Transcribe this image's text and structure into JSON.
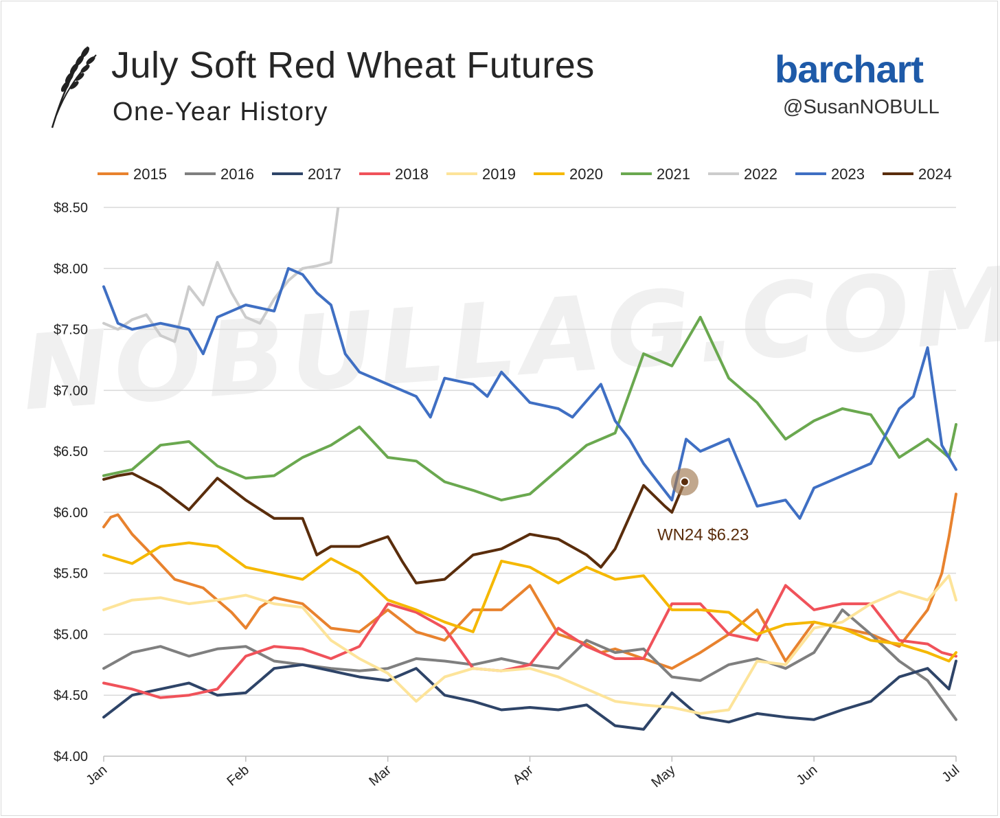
{
  "header": {
    "title": "July Soft Red Wheat Futures",
    "subtitle": "One-Year History",
    "brand": "barchart",
    "handle": "@SusanNOBULL",
    "watermark": "NOBULLAG.COM"
  },
  "chart_data": {
    "type": "line",
    "x_labels": [
      "Jan",
      "Feb",
      "Mar",
      "Apr",
      "May",
      "Jun",
      "Jul"
    ],
    "xlim": [
      0,
      6
    ],
    "ylim": [
      4.0,
      8.5
    ],
    "y_ticks": [
      {
        "value": 4.0,
        "label": "$4.00"
      },
      {
        "value": 4.5,
        "label": "$4.50"
      },
      {
        "value": 5.0,
        "label": "$5.00"
      },
      {
        "value": 5.5,
        "label": "$5.50"
      },
      {
        "value": 6.0,
        "label": "$6.00"
      },
      {
        "value": 6.5,
        "label": "$6.50"
      },
      {
        "value": 7.0,
        "label": "$7.00"
      },
      {
        "value": 7.5,
        "label": "$7.50"
      },
      {
        "value": 8.0,
        "label": "$8.00"
      },
      {
        "value": 8.5,
        "label": "$8.50"
      }
    ],
    "grid": "horizontal",
    "legend_position": "top",
    "annotation": {
      "series": "2024",
      "label": "WN24 $6.23",
      "x": 4.09,
      "y": 6.25
    },
    "series": [
      {
        "name": "2015",
        "color": "#e8822e",
        "x": [
          0,
          0.05,
          0.1,
          0.2,
          0.3,
          0.5,
          0.7,
          0.9,
          1.0,
          1.1,
          1.2,
          1.4,
          1.6,
          1.8,
          2.0,
          2.2,
          2.4,
          2.6,
          2.8,
          3.0,
          3.2,
          3.4,
          3.5,
          3.6,
          3.8,
          4.0,
          4.2,
          4.4,
          4.6,
          4.8,
          5.0,
          5.2,
          5.4,
          5.6,
          5.8,
          5.9,
          5.95,
          6.0
        ],
        "y": [
          5.88,
          5.96,
          5.98,
          5.82,
          5.7,
          5.45,
          5.38,
          5.18,
          5.05,
          5.22,
          5.3,
          5.25,
          5.05,
          5.02,
          5.2,
          5.02,
          4.95,
          5.2,
          5.2,
          5.4,
          5.0,
          4.92,
          4.85,
          4.88,
          4.8,
          4.72,
          4.85,
          5.0,
          5.2,
          4.78,
          5.1,
          5.05,
          5.0,
          4.9,
          5.2,
          5.5,
          5.8,
          6.15
        ]
      },
      {
        "name": "2016",
        "color": "#7f7f7f",
        "x": [
          0,
          0.2,
          0.4,
          0.6,
          0.8,
          1.0,
          1.2,
          1.4,
          1.6,
          1.8,
          2.0,
          2.2,
          2.4,
          2.6,
          2.8,
          3.0,
          3.2,
          3.4,
          3.6,
          3.8,
          4.0,
          4.2,
          4.4,
          4.6,
          4.8,
          5.0,
          5.2,
          5.4,
          5.6,
          5.8,
          6.0
        ],
        "y": [
          4.72,
          4.85,
          4.9,
          4.82,
          4.88,
          4.9,
          4.78,
          4.75,
          4.72,
          4.7,
          4.72,
          4.8,
          4.78,
          4.75,
          4.8,
          4.75,
          4.72,
          4.95,
          4.85,
          4.88,
          4.65,
          4.62,
          4.75,
          4.8,
          4.72,
          4.85,
          5.2,
          5.0,
          4.78,
          4.62,
          4.3
        ]
      },
      {
        "name": "2017",
        "color": "#2e4468",
        "x": [
          0,
          0.2,
          0.4,
          0.6,
          0.8,
          1.0,
          1.2,
          1.4,
          1.6,
          1.8,
          2.0,
          2.2,
          2.4,
          2.6,
          2.8,
          3.0,
          3.2,
          3.4,
          3.6,
          3.8,
          4.0,
          4.2,
          4.4,
          4.6,
          4.8,
          5.0,
          5.2,
          5.4,
          5.6,
          5.8,
          5.95,
          6.0
        ],
        "y": [
          4.32,
          4.5,
          4.55,
          4.6,
          4.5,
          4.52,
          4.72,
          4.75,
          4.7,
          4.65,
          4.62,
          4.72,
          4.5,
          4.45,
          4.38,
          4.4,
          4.38,
          4.42,
          4.25,
          4.22,
          4.52,
          4.32,
          4.28,
          4.35,
          4.32,
          4.3,
          4.38,
          4.45,
          4.65,
          4.72,
          4.55,
          4.78
        ]
      },
      {
        "name": "2018",
        "color": "#f0525a",
        "x": [
          0,
          0.2,
          0.4,
          0.6,
          0.8,
          1.0,
          1.2,
          1.4,
          1.6,
          1.8,
          2.0,
          2.2,
          2.4,
          2.6,
          2.8,
          3.0,
          3.2,
          3.4,
          3.6,
          3.8,
          4.0,
          4.2,
          4.4,
          4.6,
          4.8,
          5.0,
          5.2,
          5.4,
          5.6,
          5.8,
          5.9,
          6.0
        ],
        "y": [
          4.6,
          4.55,
          4.48,
          4.5,
          4.55,
          4.82,
          4.9,
          4.88,
          4.8,
          4.9,
          5.25,
          5.18,
          5.05,
          4.72,
          4.7,
          4.75,
          5.05,
          4.9,
          4.8,
          4.8,
          5.25,
          5.25,
          5.0,
          4.95,
          5.4,
          5.2,
          5.25,
          5.25,
          4.95,
          4.92,
          4.85,
          4.82
        ]
      },
      {
        "name": "2019",
        "color": "#fde49a",
        "x": [
          0,
          0.2,
          0.4,
          0.6,
          0.8,
          1.0,
          1.2,
          1.4,
          1.6,
          1.8,
          2.0,
          2.2,
          2.4,
          2.6,
          2.8,
          3.0,
          3.2,
          3.4,
          3.6,
          3.8,
          4.0,
          4.2,
          4.4,
          4.6,
          4.8,
          5.0,
          5.2,
          5.4,
          5.6,
          5.8,
          5.95,
          6.0
        ],
        "y": [
          5.2,
          5.28,
          5.3,
          5.25,
          5.28,
          5.32,
          5.25,
          5.22,
          4.95,
          4.8,
          4.68,
          4.45,
          4.65,
          4.72,
          4.7,
          4.72,
          4.65,
          4.55,
          4.45,
          4.42,
          4.4,
          4.35,
          4.38,
          4.78,
          4.75,
          5.05,
          5.1,
          5.25,
          5.35,
          5.28,
          5.48,
          5.28
        ]
      },
      {
        "name": "2020",
        "color": "#f5b800",
        "x": [
          0,
          0.2,
          0.4,
          0.6,
          0.8,
          1.0,
          1.2,
          1.4,
          1.6,
          1.8,
          2.0,
          2.2,
          2.4,
          2.6,
          2.8,
          3.0,
          3.2,
          3.4,
          3.6,
          3.8,
          4.0,
          4.2,
          4.4,
          4.6,
          4.8,
          5.0,
          5.2,
          5.4,
          5.6,
          5.8,
          5.95,
          6.0
        ],
        "y": [
          5.65,
          5.58,
          5.72,
          5.75,
          5.72,
          5.55,
          5.5,
          5.45,
          5.62,
          5.5,
          5.28,
          5.2,
          5.1,
          5.02,
          5.6,
          5.55,
          5.42,
          5.55,
          5.45,
          5.48,
          5.2,
          5.2,
          5.18,
          5.0,
          5.08,
          5.1,
          5.05,
          4.95,
          4.92,
          4.85,
          4.78,
          4.85
        ]
      },
      {
        "name": "2021",
        "color": "#6aa84f",
        "x": [
          0,
          0.2,
          0.4,
          0.6,
          0.8,
          1.0,
          1.2,
          1.4,
          1.6,
          1.8,
          2.0,
          2.2,
          2.4,
          2.6,
          2.8,
          3.0,
          3.2,
          3.4,
          3.6,
          3.8,
          4.0,
          4.2,
          4.4,
          4.6,
          4.8,
          5.0,
          5.2,
          5.4,
          5.6,
          5.8,
          5.95,
          6.0
        ],
        "y": [
          6.3,
          6.35,
          6.55,
          6.58,
          6.38,
          6.28,
          6.3,
          6.45,
          6.55,
          6.7,
          6.45,
          6.42,
          6.25,
          6.18,
          6.1,
          6.15,
          6.35,
          6.55,
          6.65,
          7.3,
          7.2,
          7.6,
          7.1,
          6.9,
          6.6,
          6.75,
          6.85,
          6.8,
          6.45,
          6.6,
          6.45,
          6.72
        ]
      },
      {
        "name": "2022",
        "color": "#cccccc",
        "x": [
          0,
          0.1,
          0.2,
          0.3,
          0.4,
          0.5,
          0.6,
          0.7,
          0.8,
          0.9,
          1.0,
          1.1,
          1.2,
          1.3,
          1.4,
          1.5,
          1.6,
          1.65
        ],
        "y": [
          7.55,
          7.5,
          7.58,
          7.62,
          7.45,
          7.4,
          7.85,
          7.7,
          8.05,
          7.8,
          7.6,
          7.55,
          7.75,
          7.9,
          8.0,
          8.02,
          8.05,
          8.5
        ]
      },
      {
        "name": "2023",
        "color": "#3f6fc3",
        "x": [
          0,
          0.1,
          0.2,
          0.4,
          0.6,
          0.7,
          0.8,
          0.9,
          1.0,
          1.2,
          1.3,
          1.4,
          1.5,
          1.6,
          1.7,
          1.8,
          2.0,
          2.2,
          2.3,
          2.4,
          2.6,
          2.7,
          2.8,
          3.0,
          3.2,
          3.3,
          3.5,
          3.6,
          3.7,
          3.8,
          4.0,
          4.1,
          4.2,
          4.4,
          4.6,
          4.8,
          4.9,
          5.0,
          5.2,
          5.4,
          5.6,
          5.7,
          5.8,
          5.9,
          6.0
        ],
        "y": [
          7.85,
          7.55,
          7.5,
          7.55,
          7.5,
          7.3,
          7.6,
          7.65,
          7.7,
          7.65,
          8.0,
          7.95,
          7.8,
          7.7,
          7.3,
          7.15,
          7.05,
          6.95,
          6.78,
          7.1,
          7.05,
          6.95,
          7.15,
          6.9,
          6.85,
          6.78,
          7.05,
          6.75,
          6.6,
          6.4,
          6.1,
          6.6,
          6.5,
          6.6,
          6.05,
          6.1,
          5.95,
          6.2,
          6.3,
          6.4,
          6.85,
          6.95,
          7.35,
          6.55,
          6.35
        ]
      },
      {
        "name": "2024",
        "color": "#5a2d0c",
        "x": [
          0,
          0.1,
          0.2,
          0.4,
          0.6,
          0.8,
          1.0,
          1.2,
          1.4,
          1.5,
          1.6,
          1.8,
          2.0,
          2.1,
          2.2,
          2.4,
          2.6,
          2.8,
          3.0,
          3.2,
          3.4,
          3.5,
          3.6,
          3.8,
          3.95,
          4.0,
          4.09
        ],
        "y": [
          6.27,
          6.3,
          6.32,
          6.2,
          6.02,
          6.28,
          6.1,
          5.95,
          5.95,
          5.65,
          5.72,
          5.72,
          5.8,
          5.6,
          5.42,
          5.45,
          5.65,
          5.7,
          5.82,
          5.78,
          5.65,
          5.55,
          5.7,
          6.22,
          6.05,
          6.0,
          6.25
        ]
      }
    ]
  }
}
